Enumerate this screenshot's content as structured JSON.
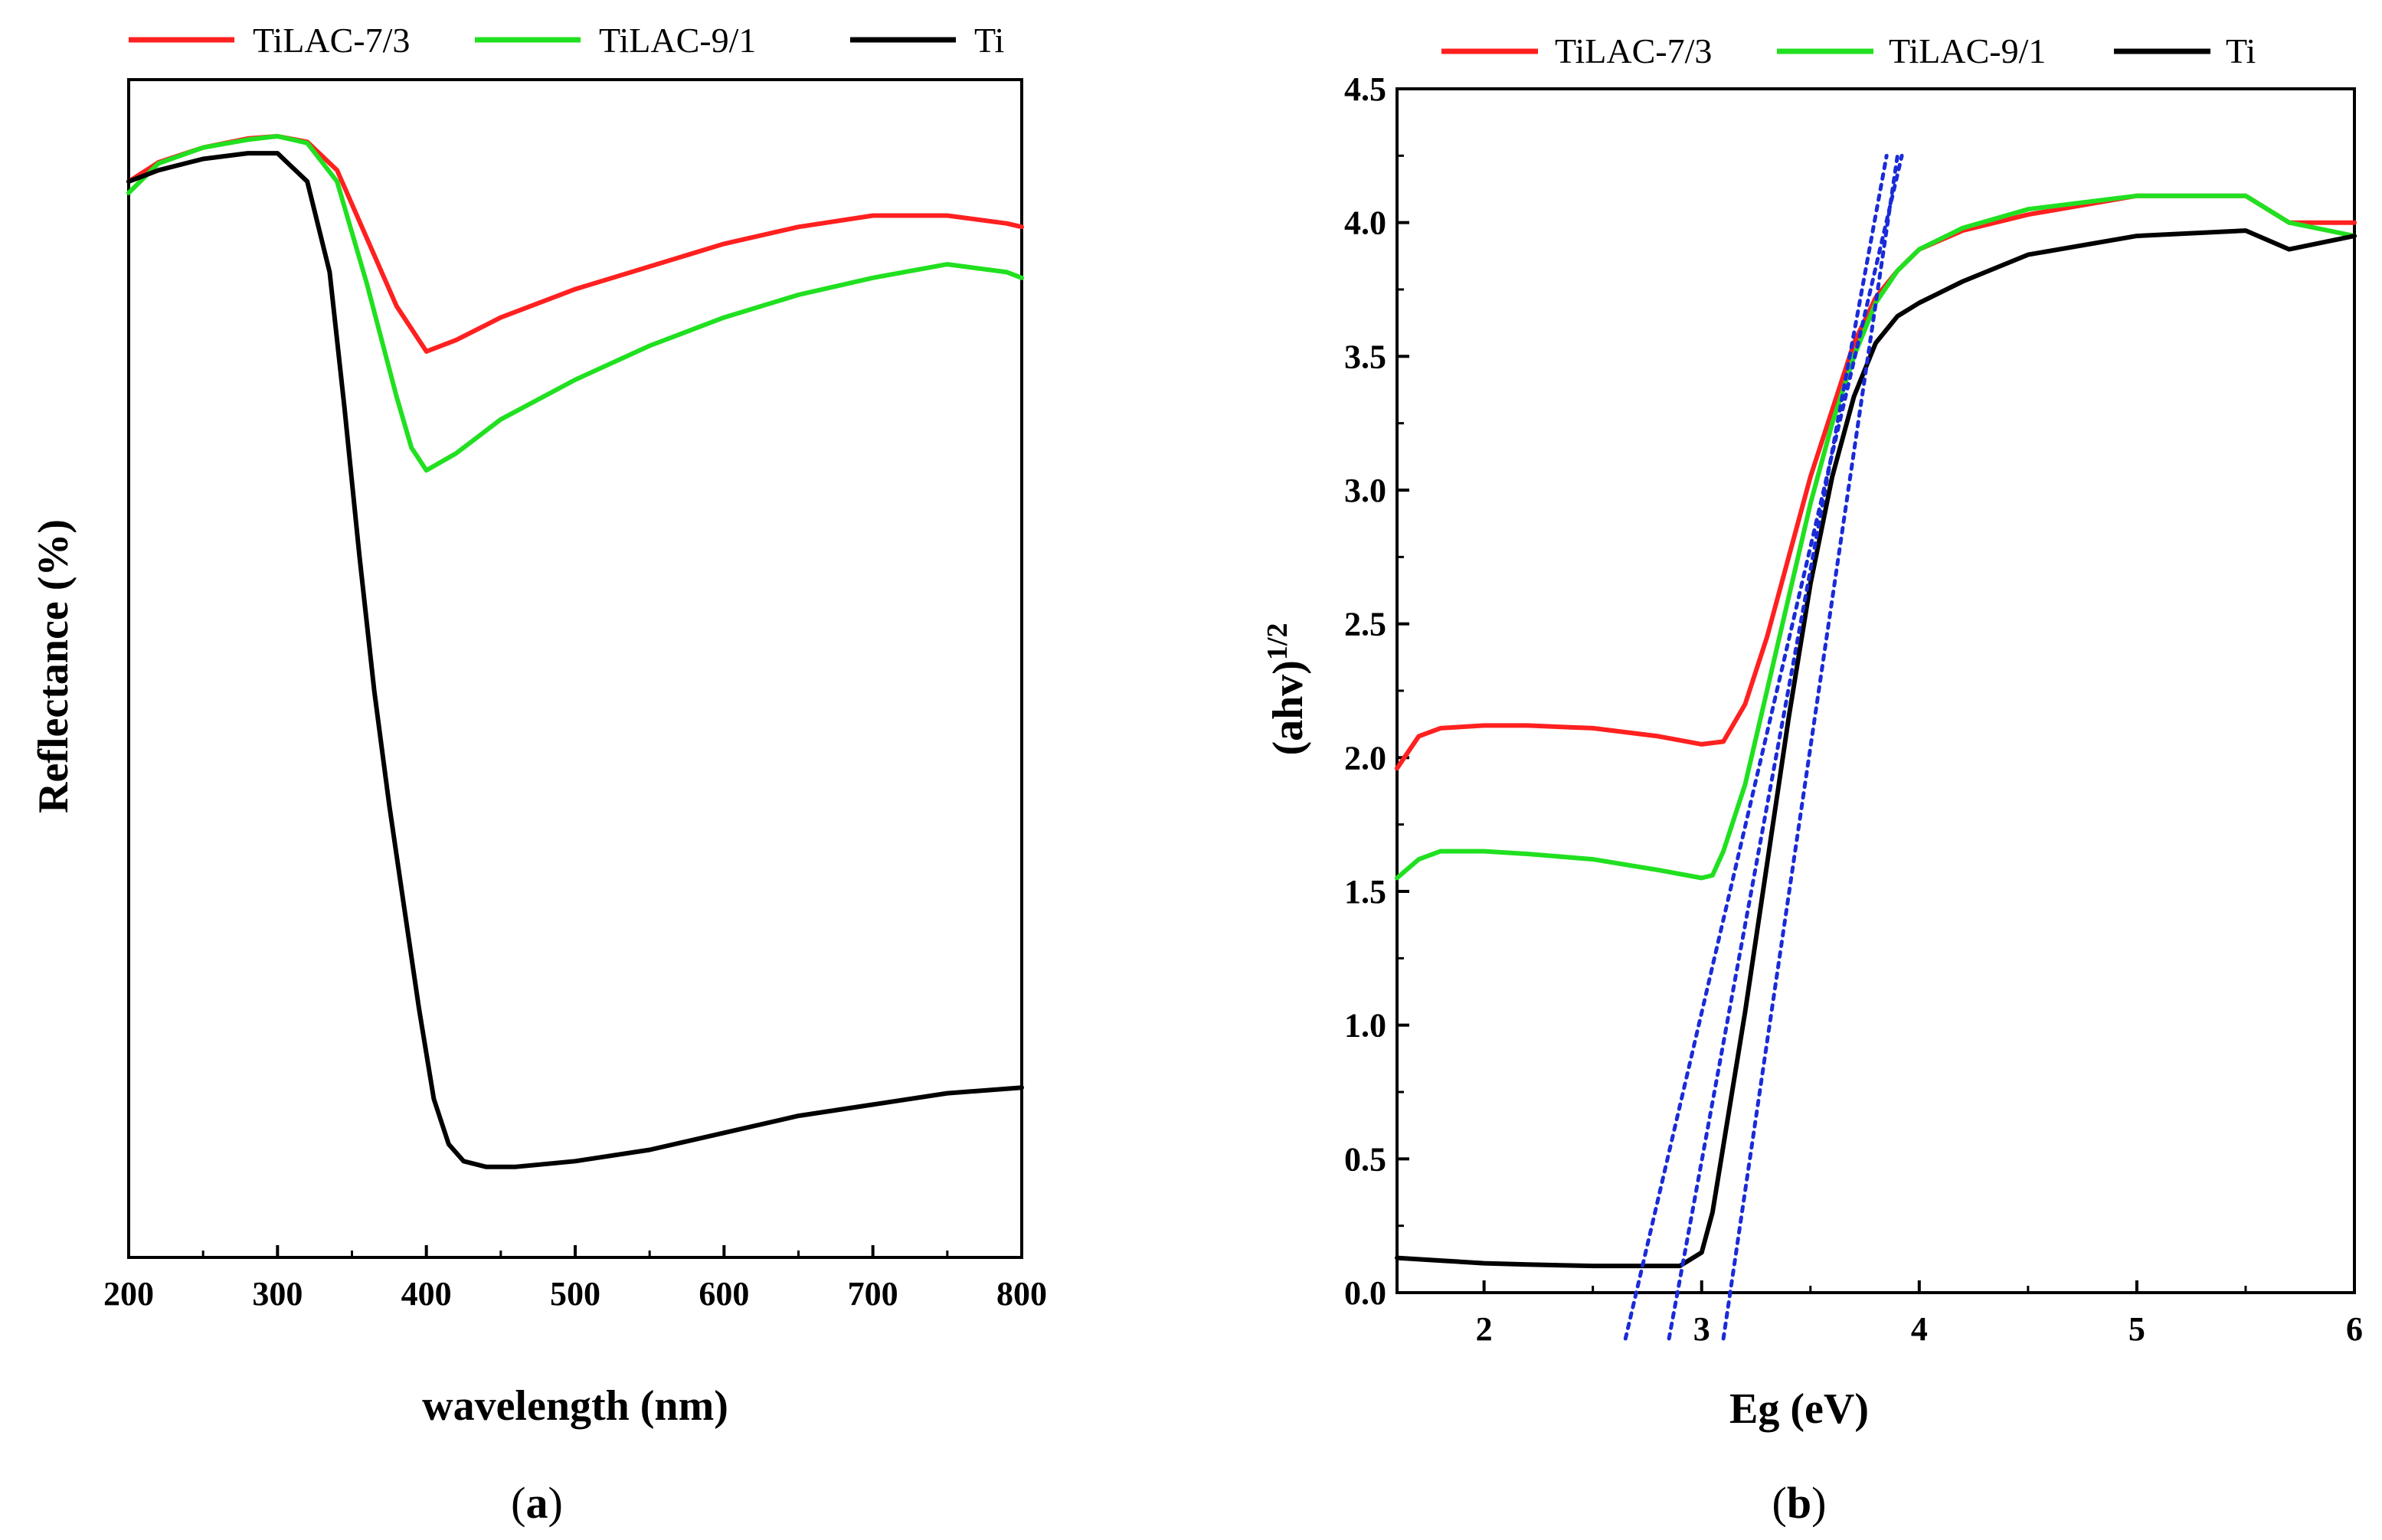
{
  "chart_data": [
    {
      "type": "line",
      "panel_label": "a",
      "xlabel": "wavelength (nm)",
      "ylabel": "Reflectance (%)",
      "xlim": [
        200,
        800
      ],
      "xticks": [
        200,
        300,
        400,
        500,
        600,
        700,
        800
      ],
      "y_tick_labels_shown": false,
      "legend_position": "top",
      "series": [
        {
          "name": "TiLAC-7/3",
          "color": "#ff2020",
          "x": [
            200,
            220,
            250,
            280,
            300,
            320,
            340,
            360,
            380,
            400,
            420,
            450,
            500,
            550,
            600,
            650,
            700,
            750,
            790,
            800
          ],
          "y": [
            95,
            96.7,
            98,
            98.8,
            99,
            98.5,
            96,
            90,
            84,
            80,
            81,
            83,
            85.5,
            87.5,
            89.5,
            91,
            92,
            92,
            91.3,
            91
          ]
        },
        {
          "name": "TiLAC-9/1",
          "color": "#20e020",
          "x": [
            200,
            220,
            250,
            280,
            300,
            320,
            340,
            360,
            380,
            390,
            400,
            420,
            450,
            500,
            550,
            600,
            650,
            700,
            750,
            790,
            800
          ],
          "y": [
            94,
            96.6,
            98,
            98.7,
            99,
            98.4,
            95,
            86,
            76,
            71.5,
            69.5,
            71,
            74,
            77.5,
            80.5,
            83,
            85,
            86.5,
            87.7,
            87,
            86.5
          ]
        },
        {
          "name": "Ti",
          "color": "#000000",
          "x": [
            200,
            220,
            250,
            280,
            300,
            320,
            335,
            345,
            355,
            365,
            375,
            385,
            395,
            405,
            415,
            425,
            440,
            460,
            500,
            550,
            600,
            650,
            700,
            750,
            800
          ],
          "y": [
            95,
            96,
            97,
            97.5,
            97.5,
            95,
            87,
            75,
            62,
            50,
            40,
            31,
            22,
            14,
            10,
            8.5,
            8,
            8,
            8.5,
            9.5,
            11,
            12.5,
            13.5,
            14.5,
            15
          ]
        }
      ]
    },
    {
      "type": "line",
      "panel_label": "b",
      "xlabel": "Eg (eV)",
      "ylabel_main": "(ahv)",
      "ylabel_sup": "1/2",
      "xlim": [
        1.6,
        6
      ],
      "ylim": [
        0,
        4.5
      ],
      "xticks": [
        2,
        3,
        4,
        5,
        6
      ],
      "yticks": [
        0.0,
        0.5,
        1.0,
        1.5,
        2.0,
        2.5,
        3.0,
        3.5,
        4.0,
        4.5
      ],
      "ytick_labels": [
        "0.0",
        "0.5",
        "1.0",
        "1.5",
        "2.0",
        "2.5",
        "3.0",
        "3.5",
        "4.0",
        "4.5"
      ],
      "legend_position": "top",
      "series": [
        {
          "name": "TiLAC-7/3",
          "color": "#ff2020",
          "x": [
            1.6,
            1.7,
            1.8,
            2.0,
            2.2,
            2.5,
            2.8,
            3.0,
            3.1,
            3.2,
            3.3,
            3.4,
            3.5,
            3.6,
            3.7,
            3.8,
            3.9,
            4.0,
            4.2,
            4.5,
            5.0,
            5.5,
            5.7,
            6.0
          ],
          "y": [
            1.96,
            2.08,
            2.11,
            2.12,
            2.12,
            2.11,
            2.08,
            2.05,
            2.06,
            2.2,
            2.45,
            2.75,
            3.05,
            3.3,
            3.55,
            3.72,
            3.82,
            3.9,
            3.97,
            4.03,
            4.1,
            4.1,
            4.0,
            4.0
          ]
        },
        {
          "name": "TiLAC-9/1",
          "color": "#20e020",
          "x": [
            1.6,
            1.7,
            1.8,
            2.0,
            2.2,
            2.5,
            2.8,
            3.0,
            3.05,
            3.1,
            3.2,
            3.3,
            3.4,
            3.5,
            3.6,
            3.7,
            3.8,
            3.9,
            4.0,
            4.2,
            4.5,
            5.0,
            5.5,
            5.7,
            6.0
          ],
          "y": [
            1.55,
            1.62,
            1.65,
            1.65,
            1.64,
            1.62,
            1.58,
            1.55,
            1.56,
            1.65,
            1.9,
            2.25,
            2.6,
            2.95,
            3.25,
            3.5,
            3.7,
            3.82,
            3.9,
            3.98,
            4.05,
            4.1,
            4.1,
            4.0,
            3.95
          ]
        },
        {
          "name": "Ti",
          "color": "#000000",
          "x": [
            1.6,
            1.8,
            2.0,
            2.2,
            2.5,
            2.7,
            2.9,
            3.0,
            3.05,
            3.1,
            3.15,
            3.2,
            3.3,
            3.4,
            3.5,
            3.6,
            3.7,
            3.8,
            3.9,
            4.0,
            4.2,
            4.5,
            5.0,
            5.5,
            5.7,
            6.0
          ],
          "y": [
            0.13,
            0.12,
            0.11,
            0.105,
            0.1,
            0.1,
            0.1,
            0.15,
            0.3,
            0.55,
            0.8,
            1.05,
            1.6,
            2.15,
            2.65,
            3.05,
            3.35,
            3.55,
            3.65,
            3.7,
            3.78,
            3.88,
            3.95,
            3.97,
            3.9,
            3.95
          ]
        }
      ],
      "tangent_lines": [
        {
          "color": "#1a2bd8",
          "style": "dotted",
          "x": [
            2.65,
            3.92
          ],
          "y": [
            0,
            4.25
          ]
        },
        {
          "color": "#1a2bd8",
          "style": "dotted",
          "x": [
            2.85,
            3.85
          ],
          "y": [
            0,
            4.25
          ]
        },
        {
          "color": "#1a2bd8",
          "style": "dotted",
          "x": [
            3.1,
            3.9
          ],
          "y": [
            0,
            4.25
          ]
        }
      ]
    }
  ]
}
